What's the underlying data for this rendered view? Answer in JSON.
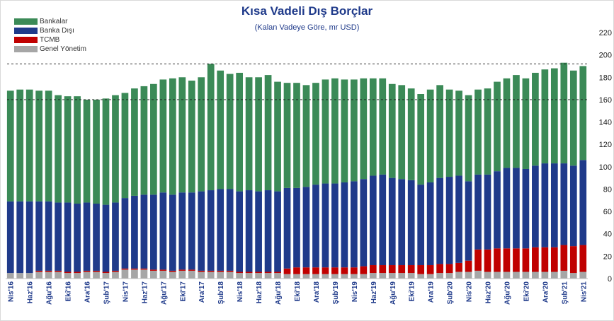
{
  "chart_data": {
    "type": "bar",
    "stacked": true,
    "title": "Kısa Vadeli Dış Borçlar",
    "subtitle": "(Kalan Vadeye Göre, mr USD)",
    "ylim": [
      0,
      220
    ],
    "yticks": [
      0,
      20,
      40,
      60,
      80,
      100,
      120,
      140,
      160,
      180,
      200,
      220
    ],
    "y_axis_side": "right",
    "grid": false,
    "legend_position": "top-left",
    "reference_lines": [
      {
        "value": 160,
        "style": "dashed"
      },
      {
        "value": 192,
        "style": "dashed"
      }
    ],
    "x_tick_labels": [
      {
        "index": 0,
        "label": "Nis'16"
      },
      {
        "index": 2,
        "label": "Haz'16"
      },
      {
        "index": 4,
        "label": "Ağu'16"
      },
      {
        "index": 6,
        "label": "Eki'16"
      },
      {
        "index": 8,
        "label": "Ara'16"
      },
      {
        "index": 10,
        "label": "Şub'17"
      },
      {
        "index": 12,
        "label": "Nis'17"
      },
      {
        "index": 14,
        "label": "Haz'17"
      },
      {
        "index": 16,
        "label": "Ağu'17"
      },
      {
        "index": 18,
        "label": "Eki'17"
      },
      {
        "index": 20,
        "label": "Ara'17"
      },
      {
        "index": 22,
        "label": "Şub'18"
      },
      {
        "index": 24,
        "label": "Nis'18"
      },
      {
        "index": 26,
        "label": "Haz'18"
      },
      {
        "index": 28,
        "label": "Ağu'18"
      },
      {
        "index": 30,
        "label": "Eki'18"
      },
      {
        "index": 32,
        "label": "Ara'18"
      },
      {
        "index": 34,
        "label": "Şub'19"
      },
      {
        "index": 36,
        "label": "Nis'19"
      },
      {
        "index": 38,
        "label": "Haz'19"
      },
      {
        "index": 40,
        "label": "Ağu'19"
      },
      {
        "index": 42,
        "label": "Eki'19"
      },
      {
        "index": 44,
        "label": "Ara'19"
      },
      {
        "index": 46,
        "label": "Şub'20"
      },
      {
        "index": 48,
        "label": "Nis'20"
      },
      {
        "index": 50,
        "label": "Haz'20"
      },
      {
        "index": 52,
        "label": "Ağu'20"
      },
      {
        "index": 54,
        "label": "Eki'20"
      },
      {
        "index": 56,
        "label": "Ara'20"
      },
      {
        "index": 58,
        "label": "Şub'21"
      },
      {
        "index": 60,
        "label": "Nis'21"
      }
    ],
    "series": [
      {
        "name": "Genel Yönetim",
        "color": "#a6a6a6",
        "values": [
          5,
          5,
          5,
          6,
          6,
          6,
          5,
          5,
          6,
          6,
          5,
          6,
          8,
          8,
          8,
          7,
          7,
          6,
          7,
          7,
          6,
          6,
          6,
          6,
          5,
          5,
          5,
          5,
          5,
          4,
          4,
          4,
          4,
          4,
          4,
          4,
          4,
          4,
          5,
          5,
          5,
          5,
          5,
          4,
          4,
          5,
          5,
          6,
          6,
          7,
          6,
          6,
          6,
          6,
          6,
          6,
          6,
          6,
          7,
          5,
          6
        ]
      },
      {
        "name": "TCMB",
        "color": "#c00000",
        "values": [
          0,
          0,
          0,
          1,
          1,
          1,
          1,
          1,
          1,
          1,
          1,
          1,
          1,
          1,
          1,
          1,
          1,
          1,
          1,
          1,
          1,
          1,
          1,
          1,
          1,
          1,
          1,
          1,
          1,
          5,
          6,
          6,
          6,
          6,
          6,
          6,
          6,
          7,
          7,
          7,
          7,
          7,
          7,
          8,
          8,
          8,
          8,
          8,
          10,
          19,
          20,
          21,
          21,
          21,
          21,
          22,
          22,
          22,
          23,
          24,
          24
        ]
      },
      {
        "name": "Banka Dışı",
        "color": "#1f3a8a",
        "values": [
          64,
          64,
          64,
          62,
          62,
          61,
          62,
          61,
          61,
          60,
          60,
          61,
          63,
          65,
          66,
          67,
          69,
          68,
          69,
          69,
          71,
          72,
          73,
          73,
          72,
          73,
          72,
          73,
          72,
          72,
          71,
          72,
          74,
          75,
          75,
          76,
          77,
          78,
          80,
          81,
          78,
          77,
          76,
          72,
          74,
          77,
          78,
          78,
          71,
          67,
          67,
          69,
          72,
          72,
          71,
          73,
          75,
          75,
          73,
          72,
          76
        ]
      },
      {
        "name": "Bankalar",
        "color": "#3b8a57",
        "values": [
          99,
          100,
          100,
          99,
          99,
          96,
          95,
          96,
          92,
          93,
          95,
          96,
          94,
          96,
          97,
          99,
          101,
          104,
          103,
          100,
          102,
          113,
          106,
          103,
          106,
          101,
          102,
          103,
          98,
          94,
          94,
          91,
          91,
          93,
          94,
          92,
          91,
          90,
          87,
          86,
          84,
          84,
          82,
          81,
          83,
          83,
          78,
          76,
          77,
          76,
          77,
          80,
          80,
          83,
          81,
          83,
          84,
          85,
          90,
          85,
          84
        ]
      }
    ]
  }
}
